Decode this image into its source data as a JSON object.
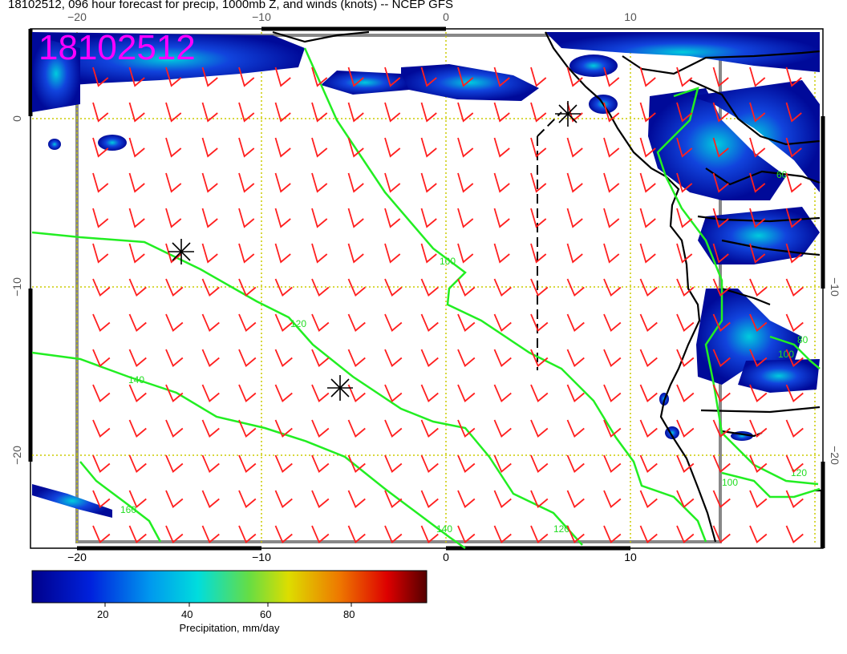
{
  "header": {
    "title": "18102512, 096 hour forecast for precip, 1000mb Z, and winds (knots) -- NCEP GFS",
    "stamp": "18102512"
  },
  "axes": {
    "lon_ticks": [
      "−20",
      "−10",
      "0",
      "10"
    ],
    "lat_ticks": [
      "0",
      "−10",
      "−20"
    ]
  },
  "contour_labels": [
    "100",
    "120",
    "140",
    "160",
    "60",
    "80",
    "100",
    "120",
    "120",
    "140",
    "100"
  ],
  "colorbar": {
    "ticks": [
      "20",
      "40",
      "60",
      "80"
    ],
    "title": "Precipitation, mm/day"
  },
  "colors": {
    "wind_barbs": "#ff2020",
    "contours": "#22ee22",
    "grid": "#cccc00",
    "stamp": "#ff00ff"
  }
}
